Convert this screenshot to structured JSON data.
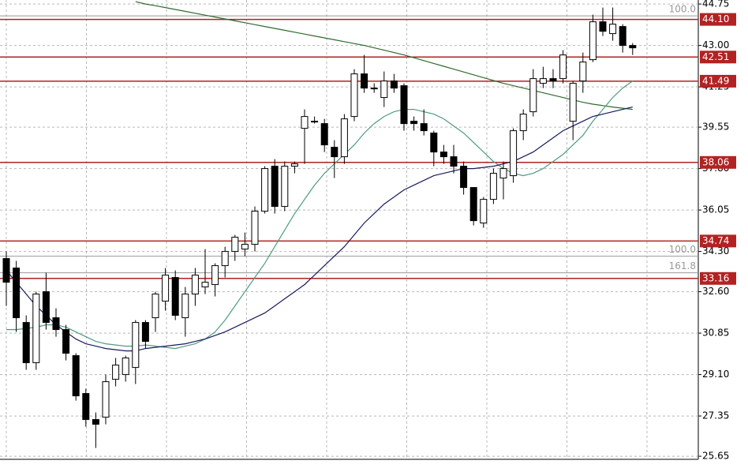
{
  "chart_data": {
    "type": "candlestick",
    "categories": [
      null,
      null,
      null,
      null,
      null,
      null,
      null,
      null,
      null,
      null,
      null,
      null,
      null,
      null,
      null,
      null,
      null,
      null,
      null,
      null,
      null,
      null,
      null,
      null,
      null,
      null,
      null,
      null,
      null,
      null,
      null,
      null,
      null,
      null,
      null,
      null,
      null,
      null,
      null,
      null,
      null,
      null,
      null,
      null,
      null,
      null,
      null,
      null,
      null,
      null,
      null,
      null,
      null,
      null,
      null,
      null,
      null,
      null,
      null,
      null,
      null,
      null,
      null,
      null
    ],
    "open": [
      34.0,
      33.6,
      31.3,
      29.6,
      32.6,
      31.5,
      31.0,
      29.9,
      28.3,
      27.2,
      27.3,
      28.9,
      29.1,
      29.4,
      31.3,
      31.5,
      32.2,
      33.2,
      31.5,
      32.5,
      32.8,
      32.9,
      33.7,
      34.3,
      34.4,
      34.6,
      36.0,
      37.9,
      36.2,
      37.9,
      39.5,
      39.8,
      39.7,
      38.7,
      38.3,
      40.0,
      41.8,
      41.2,
      40.8,
      41.5,
      41.3,
      39.8,
      39.7,
      39.3,
      38.5,
      38.3,
      37.9,
      37.0,
      35.5,
      36.5,
      37.4,
      37.5,
      39.4,
      40.2,
      41.4,
      41.6,
      41.6,
      39.8,
      41.5,
      42.4,
      44.0,
      43.5,
      43.8,
      43.0
    ],
    "high": [
      34.3,
      33.9,
      31.6,
      32.6,
      33.4,
      31.9,
      31.2,
      30.0,
      28.5,
      27.5,
      29.1,
      29.8,
      29.9,
      31.4,
      31.4,
      32.6,
      33.6,
      33.5,
      32.8,
      33.6,
      34.4,
      33.8,
      34.5,
      35.0,
      35.1,
      36.2,
      37.9,
      38.2,
      38.1,
      38.1,
      40.3,
      40.0,
      39.9,
      39.0,
      40.1,
      42.0,
      42.6,
      41.4,
      41.9,
      41.8,
      41.4,
      40.0,
      40.3,
      39.4,
      38.8,
      38.8,
      38.1,
      37.0,
      36.6,
      37.8,
      38.1,
      39.5,
      40.3,
      42.0,
      42.1,
      42.0,
      42.8,
      41.5,
      42.7,
      44.3,
      44.6,
      44.6,
      43.9,
      43.1
    ],
    "low": [
      32.0,
      30.9,
      29.3,
      29.3,
      31.0,
      30.7,
      29.7,
      28.0,
      26.9,
      26.0,
      27.0,
      28.6,
      28.8,
      28.7,
      30.2,
      30.9,
      31.8,
      31.4,
      30.7,
      32.0,
      32.5,
      32.4,
      33.2,
      33.9,
      34.1,
      34.3,
      35.9,
      35.9,
      36.0,
      37.6,
      38.0,
      39.7,
      38.5,
      37.4,
      38.0,
      39.8,
      41.0,
      41.0,
      40.4,
      41.0,
      39.4,
      39.4,
      39.2,
      37.9,
      38.0,
      37.6,
      36.7,
      35.4,
      35.3,
      36.3,
      36.5,
      37.2,
      39.0,
      40.0,
      41.2,
      41.2,
      41.4,
      39.0,
      41.0,
      42.3,
      43.4,
      43.2,
      42.7,
      42.6
    ],
    "close": [
      33.0,
      31.5,
      29.6,
      32.5,
      31.3,
      31.0,
      30.0,
      28.2,
      27.2,
      27.0,
      28.8,
      29.5,
      29.8,
      31.3,
      30.5,
      32.5,
      33.3,
      31.6,
      32.5,
      33.3,
      33.0,
      33.7,
      34.3,
      34.9,
      34.6,
      36.0,
      37.8,
      36.2,
      37.9,
      38.0,
      40.0,
      39.8,
      38.8,
      38.3,
      39.9,
      41.8,
      41.2,
      41.2,
      41.5,
      41.2,
      39.7,
      39.7,
      39.4,
      38.5,
      38.3,
      37.9,
      37.0,
      35.6,
      36.5,
      37.6,
      37.8,
      39.4,
      40.1,
      41.6,
      41.6,
      41.5,
      42.6,
      41.4,
      42.3,
      44.0,
      43.6,
      43.9,
      43.0,
      42.9
    ],
    "series": [
      {
        "color": "#2e6b2e",
        "values": [
          null,
          null,
          null,
          null,
          null,
          null,
          null,
          null,
          null,
          null,
          null,
          null,
          null,
          44.85,
          44.75,
          44.68,
          44.6,
          44.52,
          44.44,
          44.36,
          44.28,
          44.2,
          44.12,
          44.04,
          43.96,
          43.88,
          43.8,
          43.72,
          43.64,
          43.56,
          43.48,
          43.4,
          43.32,
          43.24,
          43.16,
          43.08,
          43.0,
          42.9,
          42.8,
          42.7,
          42.6,
          42.48,
          42.36,
          42.24,
          42.12,
          42.0,
          41.88,
          41.76,
          41.64,
          41.52,
          41.4,
          41.3,
          41.2,
          41.1,
          41.0,
          40.9,
          40.8,
          40.7,
          40.6,
          40.52,
          40.46,
          40.4,
          40.35,
          40.3
        ]
      },
      {
        "color": "#4f9a86",
        "values": [
          31.0,
          31.0,
          31.05,
          31.1,
          31.2,
          31.2,
          31.1,
          30.9,
          30.7,
          30.5,
          30.4,
          30.35,
          30.3,
          30.3,
          30.35,
          30.3,
          30.25,
          30.2,
          30.3,
          30.4,
          30.6,
          30.9,
          31.4,
          32.0,
          32.6,
          33.2,
          33.8,
          34.5,
          35.2,
          35.9,
          36.5,
          37.1,
          37.6,
          38.0,
          38.4,
          38.8,
          39.3,
          39.7,
          40.0,
          40.2,
          40.3,
          40.3,
          40.2,
          40.1,
          39.9,
          39.6,
          39.3,
          38.9,
          38.5,
          38.1,
          37.8,
          37.6,
          37.5,
          37.6,
          37.8,
          38.1,
          38.4,
          38.8,
          39.2,
          39.8,
          40.3,
          40.8,
          41.2,
          41.5
        ]
      },
      {
        "color": "#1a1a5e",
        "values": [
          33.5,
          33.0,
          32.5,
          32.0,
          31.6,
          31.2,
          30.9,
          30.6,
          30.4,
          30.3,
          30.2,
          30.15,
          30.1,
          30.1,
          30.2,
          30.25,
          30.3,
          30.35,
          30.4,
          30.5,
          30.6,
          30.75,
          30.9,
          31.1,
          31.3,
          31.5,
          31.7,
          32.0,
          32.3,
          32.6,
          32.9,
          33.3,
          33.7,
          34.1,
          34.5,
          35.0,
          35.5,
          35.9,
          36.3,
          36.6,
          36.9,
          37.1,
          37.3,
          37.5,
          37.6,
          37.7,
          37.8,
          37.8,
          37.85,
          37.9,
          38.0,
          38.1,
          38.3,
          38.5,
          38.8,
          39.1,
          39.4,
          39.6,
          39.8,
          40.0,
          40.1,
          40.2,
          40.3,
          40.4
        ]
      }
    ],
    "levels": [
      {
        "value": 44.1,
        "label": "44.10"
      },
      {
        "value": 42.51,
        "label": "42.51"
      },
      {
        "value": 41.49,
        "label": "41.49"
      },
      {
        "value": 38.06,
        "label": "38.06"
      },
      {
        "value": 34.74,
        "label": "34.74"
      },
      {
        "value": 33.16,
        "label": "33.16"
      }
    ],
    "level_color": "#b22222",
    "fib_levels": [
      {
        "value": 44.25,
        "label": "100.0"
      },
      {
        "value": 34.1,
        "label": "100.0"
      },
      {
        "value": 33.4,
        "label": "161.8"
      }
    ],
    "ylim": [
      25.52,
      44.92
    ],
    "yticks": [
      25.65,
      27.35,
      {
        "value": 29.1,
        "label": "29.10"
      },
      30.85,
      {
        "value": 32.6,
        "label": "32.60"
      },
      {
        "value": 34.3,
        "label": "34.30"
      },
      36.05,
      {
        "value": 37.8,
        "label": "37.80"
      },
      39.55,
      41.25,
      {
        "value": 43.0,
        "label": "43.00"
      },
      44.75
    ],
    "grid": true
  }
}
